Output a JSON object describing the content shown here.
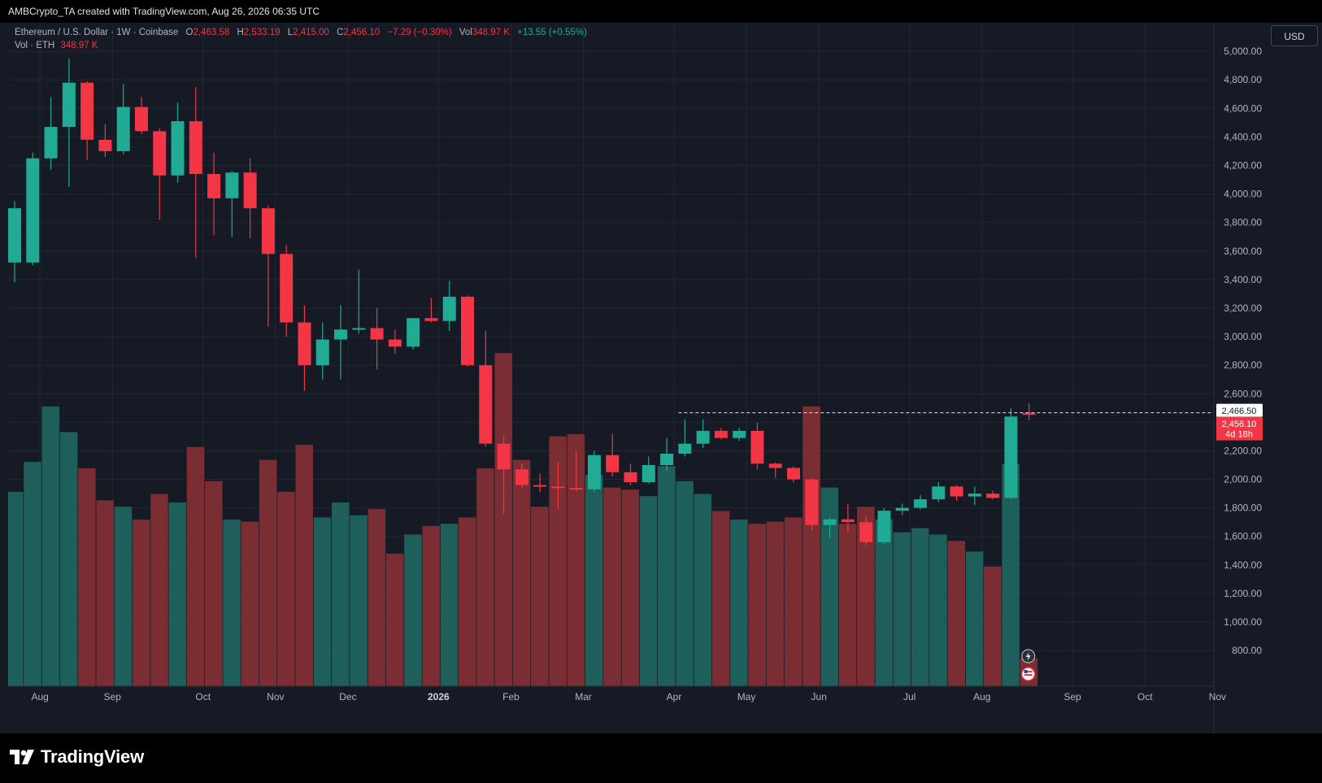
{
  "credit": "AMBCrypto_TA created with TradingView.com, Aug 26, 2026 06:35 UTC",
  "legend": {
    "symbol": "Ethereum / U.S. Dollar · 1W · Coinbase",
    "o_label": "O",
    "o_value": "2,463.58",
    "h_label": "H",
    "h_value": "2,533.19",
    "l_label": "L",
    "l_value": "2,415.00",
    "c_label": "C",
    "c_value": "2,456.10",
    "change": "−7.29 (−0.30%)",
    "vol_label": "Vol",
    "vol_value": "348.97 K",
    "vol_change": "+13.55 (+0.55%)",
    "vol_row_label": "Vol · ETH",
    "vol_row_value": "348.97 K"
  },
  "currency_button": "USD",
  "logo_text": "TradingView",
  "colors": {
    "up": "#22ab94",
    "down": "#f23645",
    "vol_up": "#1e5f5b",
    "vol_down": "#7a2d33",
    "background": "#161a25",
    "grid": "#232734",
    "axis_text": "#b2b5be"
  },
  "chart_data": {
    "type": "candlestick",
    "y_axis": {
      "ticks": [
        800,
        1000,
        1200,
        1400,
        1600,
        1800,
        2000,
        2200,
        2400,
        2600,
        2800,
        3000,
        3200,
        3400,
        3600,
        3800,
        4000,
        4200,
        4400,
        4600,
        4800,
        5000
      ],
      "tick_labels": [
        "800.00",
        "1,000.00",
        "1,200.00",
        "1,400.00",
        "1,600.00",
        "1,800.00",
        "2,000.00",
        "2,200.00",
        "2,400.00",
        "2,600.00",
        "2,800.00",
        "3,000.00",
        "3,200.00",
        "3,400.00",
        "3,600.00",
        "3,800.00",
        "4,000.00",
        "4,200.00",
        "4,400.00",
        "4,600.00",
        "4,800.00",
        "5,000.00"
      ],
      "range": [
        550,
        5200
      ],
      "position": "right"
    },
    "x_axis": {
      "month_labels": [
        "Aug",
        "Sep",
        "Oct",
        "Nov",
        "Dec",
        "2026",
        "Feb",
        "Mar",
        "Apr",
        "May",
        "Jun",
        "Jul",
        "Aug",
        "Sep",
        "Oct",
        "Nov"
      ],
      "month_label_week": [
        1.4,
        5.4,
        10.4,
        14.4,
        18.4,
        23.4,
        27.4,
        31.4,
        36.4,
        40.4,
        44.4,
        49.4,
        53.4,
        58.4,
        62.4,
        66.4
      ]
    },
    "price_labels": {
      "high_marker": "2,466.50",
      "last_price": "2,456.10",
      "countdown": "4d 18h",
      "high_marker_value": 2466.5,
      "last_price_value": 2456.1
    },
    "candles": [
      {
        "o": 3520,
        "h": 3950,
        "l": 3380,
        "c": 3900
      },
      {
        "o": 3520,
        "h": 4290,
        "l": 3500,
        "c": 4250
      },
      {
        "o": 4250,
        "h": 4680,
        "l": 4170,
        "c": 4470
      },
      {
        "o": 4470,
        "h": 4950,
        "l": 4050,
        "c": 4780
      },
      {
        "o": 4780,
        "h": 4790,
        "l": 4240,
        "c": 4380
      },
      {
        "o": 4380,
        "h": 4490,
        "l": 4260,
        "c": 4300
      },
      {
        "o": 4300,
        "h": 4770,
        "l": 4280,
        "c": 4610
      },
      {
        "o": 4610,
        "h": 4680,
        "l": 4420,
        "c": 4440
      },
      {
        "o": 4440,
        "h": 4460,
        "l": 3820,
        "c": 4130
      },
      {
        "o": 4130,
        "h": 4640,
        "l": 4080,
        "c": 4510
      },
      {
        "o": 4510,
        "h": 4750,
        "l": 3550,
        "c": 4140
      },
      {
        "o": 4140,
        "h": 4290,
        "l": 3710,
        "c": 3970
      },
      {
        "o": 3970,
        "h": 4160,
        "l": 3700,
        "c": 4150
      },
      {
        "o": 4150,
        "h": 4250,
        "l": 3690,
        "c": 3900
      },
      {
        "o": 3900,
        "h": 3920,
        "l": 3070,
        "c": 3580
      },
      {
        "o": 3580,
        "h": 3640,
        "l": 3000,
        "c": 3100
      },
      {
        "o": 3100,
        "h": 3220,
        "l": 2620,
        "c": 2800
      },
      {
        "o": 2800,
        "h": 3100,
        "l": 2700,
        "c": 2980
      },
      {
        "o": 2980,
        "h": 3220,
        "l": 2700,
        "c": 3050
      },
      {
        "o": 3050,
        "h": 3470,
        "l": 3020,
        "c": 3060
      },
      {
        "o": 3060,
        "h": 3200,
        "l": 2770,
        "c": 2980
      },
      {
        "o": 2980,
        "h": 3050,
        "l": 2880,
        "c": 2930
      },
      {
        "o": 2930,
        "h": 3130,
        "l": 2910,
        "c": 3130
      },
      {
        "o": 3130,
        "h": 3270,
        "l": 3100,
        "c": 3110
      },
      {
        "o": 3110,
        "h": 3390,
        "l": 3040,
        "c": 3280
      },
      {
        "o": 3280,
        "h": 3290,
        "l": 2790,
        "c": 2800
      },
      {
        "o": 2800,
        "h": 3040,
        "l": 2230,
        "c": 2250
      },
      {
        "o": 2250,
        "h": 2300,
        "l": 1760,
        "c": 2070
      },
      {
        "o": 2070,
        "h": 2110,
        "l": 1940,
        "c": 1960
      },
      {
        "o": 1960,
        "h": 2040,
        "l": 1910,
        "c": 1950
      },
      {
        "o": 1950,
        "h": 2120,
        "l": 1790,
        "c": 1940
      },
      {
        "o": 1940,
        "h": 2200,
        "l": 1920,
        "c": 1930
      },
      {
        "o": 1930,
        "h": 2200,
        "l": 1910,
        "c": 2170
      },
      {
        "o": 2170,
        "h": 2320,
        "l": 2020,
        "c": 2050
      },
      {
        "o": 2050,
        "h": 2110,
        "l": 1960,
        "c": 1980
      },
      {
        "o": 1980,
        "h": 2160,
        "l": 1970,
        "c": 2100
      },
      {
        "o": 2100,
        "h": 2290,
        "l": 2060,
        "c": 2180
      },
      {
        "o": 2180,
        "h": 2420,
        "l": 2160,
        "c": 2250
      },
      {
        "o": 2250,
        "h": 2420,
        "l": 2220,
        "c": 2340
      },
      {
        "o": 2340,
        "h": 2360,
        "l": 2280,
        "c": 2290
      },
      {
        "o": 2290,
        "h": 2360,
        "l": 2270,
        "c": 2340
      },
      {
        "o": 2340,
        "h": 2400,
        "l": 2070,
        "c": 2110
      },
      {
        "o": 2110,
        "h": 2120,
        "l": 2010,
        "c": 2080
      },
      {
        "o": 2080,
        "h": 2090,
        "l": 1980,
        "c": 2000
      },
      {
        "o": 2000,
        "h": 2010,
        "l": 1640,
        "c": 1680
      },
      {
        "o": 1680,
        "h": 1730,
        "l": 1590,
        "c": 1720
      },
      {
        "o": 1720,
        "h": 1830,
        "l": 1630,
        "c": 1700
      },
      {
        "o": 1700,
        "h": 1740,
        "l": 1540,
        "c": 1560
      },
      {
        "o": 1560,
        "h": 1800,
        "l": 1550,
        "c": 1780
      },
      {
        "o": 1780,
        "h": 1830,
        "l": 1750,
        "c": 1800
      },
      {
        "o": 1800,
        "h": 1890,
        "l": 1790,
        "c": 1860
      },
      {
        "o": 1860,
        "h": 1980,
        "l": 1840,
        "c": 1950
      },
      {
        "o": 1950,
        "h": 1960,
        "l": 1850,
        "c": 1880
      },
      {
        "o": 1880,
        "h": 1950,
        "l": 1820,
        "c": 1900
      },
      {
        "o": 1900,
        "h": 1920,
        "l": 1860,
        "c": 1870
      },
      {
        "o": 1870,
        "h": 2500,
        "l": 1860,
        "c": 2440
      },
      {
        "o": 2463.58,
        "h": 2533.19,
        "l": 2415.0,
        "c": 2456.1
      }
    ],
    "volume": {
      "values": [
        1130,
        1270,
        1530,
        1410,
        1240,
        1090,
        1060,
        1000,
        1120,
        1080,
        1340,
        1180,
        1000,
        990,
        1280,
        1130,
        1350,
        1010,
        1080,
        1020,
        1050,
        840,
        930,
        970,
        980,
        1010,
        1240,
        1780,
        1280,
        1060,
        1390,
        1400,
        1210,
        1150,
        1140,
        1110,
        1250,
        1180,
        1120,
        1040,
        1000,
        980,
        990,
        1010,
        1530,
        1150,
        980,
        1060,
        1000,
        940,
        960,
        930,
        900,
        850,
        780,
        1260,
        350
      ],
      "range": [
        600,
        2200
      ],
      "label": "Vol · ETH"
    }
  }
}
